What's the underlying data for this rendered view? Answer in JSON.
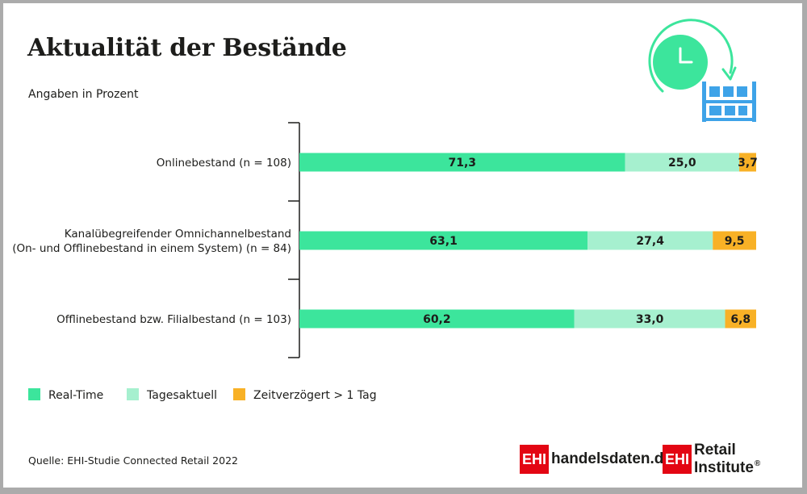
{
  "title": "Aktualität der Bestände",
  "subtitle": "Angaben in Prozent",
  "source": "Quelle: EHI-Studie Connected Retail 2022",
  "icon": "clock-and-warehouse-shelf-icon",
  "colors": {
    "real_time": "#3ce59c",
    "tagesaktuell": "#a6f0cf",
    "zeitverzoegert": "#f8b126",
    "axis": "#1d1d1b",
    "text": "#1d1d1b",
    "icon_green": "#3ce59c",
    "icon_blue": "#3ea3e8"
  },
  "chart_data": {
    "type": "bar",
    "orientation": "horizontal",
    "stacked": true,
    "categories": [
      [
        "Onlinebestand (n = 108)"
      ],
      [
        "Kanalübegreifender Omnichannelbestand",
        "(On- und Offlinebestand in einem System) (n = 84)"
      ],
      [
        "Offlinebestand bzw. Filialbestand (n = 103)"
      ]
    ],
    "series": [
      {
        "name": "Real-Time",
        "values": [
          71.3,
          63.1,
          60.2
        ],
        "labels": [
          "71,3",
          "63,1",
          "60,2"
        ]
      },
      {
        "name": "Tagesaktuell",
        "values": [
          25.0,
          27.4,
          33.0
        ],
        "labels": [
          "25,0",
          "27,4",
          "33,0"
        ]
      },
      {
        "name": "Zeitverzögert > 1 Tag",
        "values": [
          3.7,
          9.5,
          6.8
        ],
        "labels": [
          "3,7",
          "9,5",
          "6,8"
        ]
      }
    ],
    "xlim": [
      0,
      100
    ],
    "grid": false,
    "legend_position": "bottom-left"
  },
  "brands": {
    "handelsdaten": {
      "box": "EHI",
      "text": "handelsdaten.de"
    },
    "retail": {
      "box": "EHI",
      "text": "Retail Institute",
      "mark": "®"
    }
  }
}
